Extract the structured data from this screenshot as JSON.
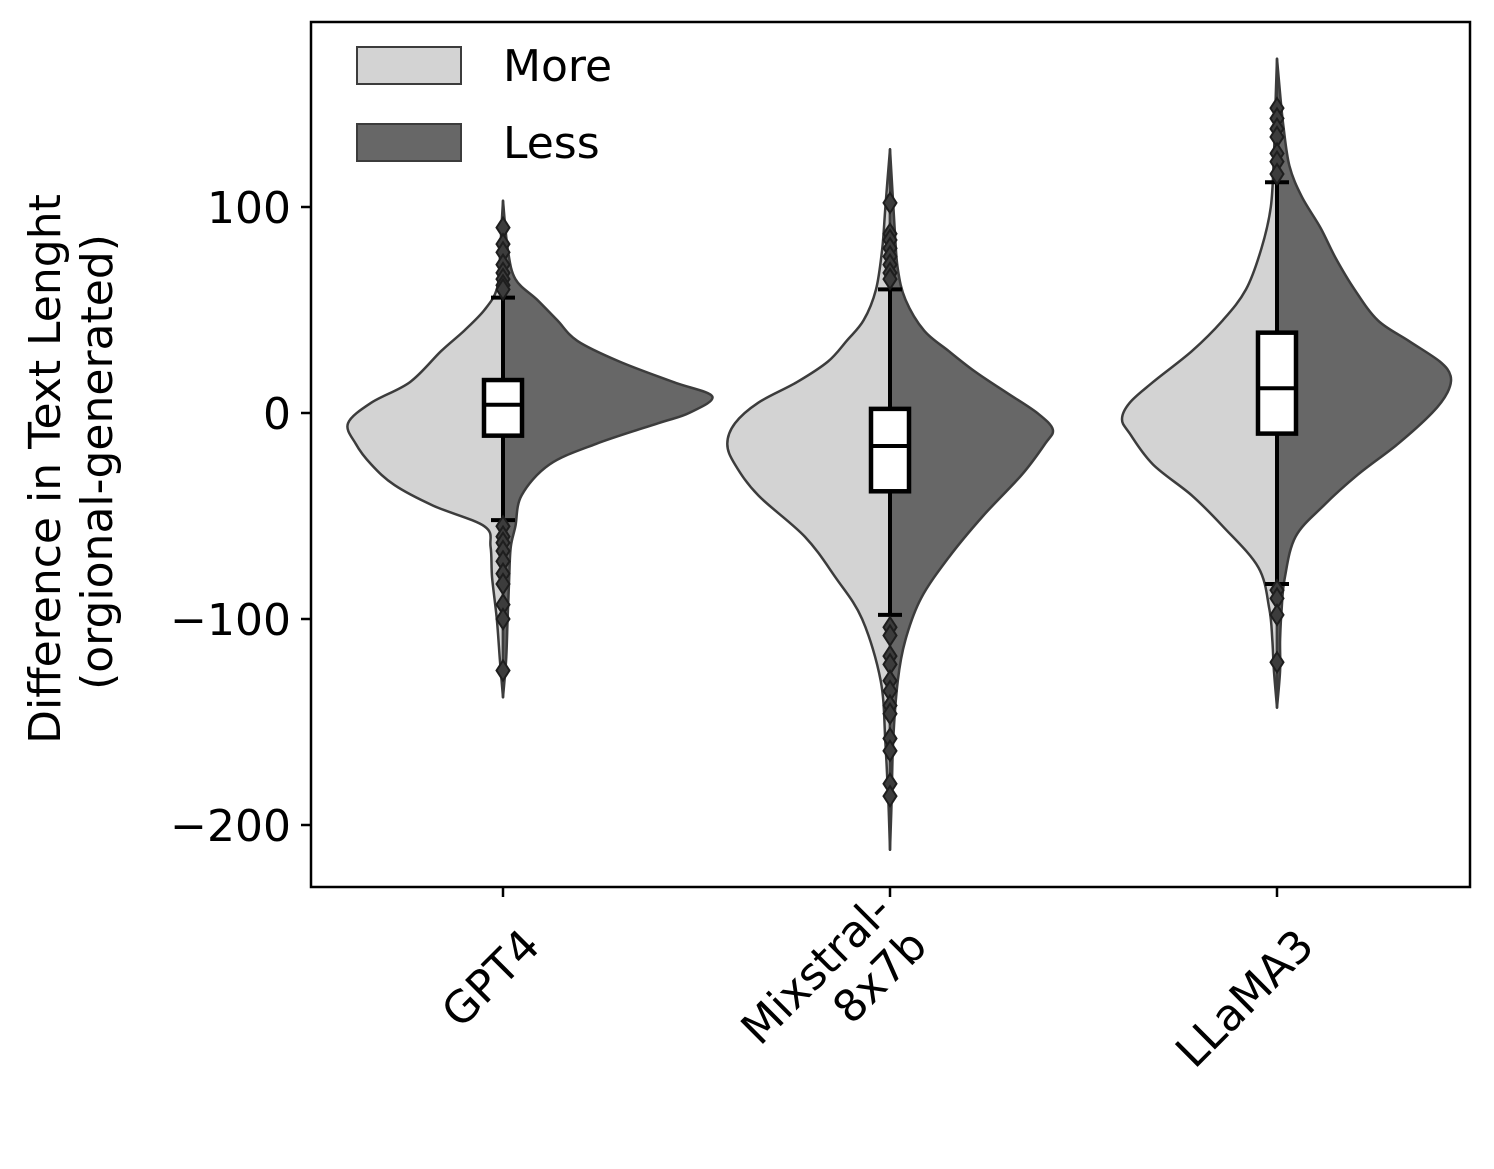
{
  "chart_data": {
    "type": "violin",
    "title": "",
    "xlabel": "",
    "ylabel": [
      "Difference in Text Lenght",
      "(orgional-generated)"
    ],
    "ylim": [
      -230,
      190
    ],
    "yticks": [
      100,
      0,
      -100,
      -200
    ],
    "ytick_labels": [
      "100",
      "0",
      "−100",
      "−200"
    ],
    "categories": [
      "GPT4",
      "Mixstral-\n8x7b",
      "LLaMA3"
    ],
    "category_lines": [
      [
        "GPT4"
      ],
      [
        "Mixstral-",
        "8x7b"
      ],
      [
        "LLaMA3"
      ]
    ],
    "legend": {
      "placement": "top-left",
      "entries": [
        {
          "label": "More",
          "color": "#d3d3d3"
        },
        {
          "label": "Less",
          "color": "#676767"
        }
      ]
    },
    "colors": {
      "more": "#d3d3d3",
      "less": "#676767",
      "outline": "#3c3c3c"
    },
    "violins": [
      {
        "category": "GPT4",
        "more_profile": [
          [
            -138,
            0.0
          ],
          [
            -120,
            0.02
          ],
          [
            -100,
            0.04
          ],
          [
            -80,
            0.07
          ],
          [
            -65,
            0.08
          ],
          [
            -55,
            0.12
          ],
          [
            -45,
            0.45
          ],
          [
            -35,
            0.7
          ],
          [
            -25,
            0.85
          ],
          [
            -15,
            0.95
          ],
          [
            -5,
            1.0
          ],
          [
            5,
            0.85
          ],
          [
            15,
            0.6
          ],
          [
            30,
            0.4
          ],
          [
            40,
            0.25
          ],
          [
            50,
            0.12
          ],
          [
            60,
            0.04
          ],
          [
            75,
            0.02
          ],
          [
            90,
            0.01
          ],
          [
            103,
            0.0
          ]
        ],
        "less_profile": [
          [
            -138,
            0.0
          ],
          [
            -120,
            0.02
          ],
          [
            -100,
            0.03
          ],
          [
            -80,
            0.04
          ],
          [
            -65,
            0.05
          ],
          [
            -55,
            0.08
          ],
          [
            -40,
            0.12
          ],
          [
            -25,
            0.3
          ],
          [
            -15,
            0.6
          ],
          [
            -5,
            1.0
          ],
          [
            0,
            1.2
          ],
          [
            8,
            1.35
          ],
          [
            15,
            1.1
          ],
          [
            25,
            0.75
          ],
          [
            35,
            0.48
          ],
          [
            45,
            0.35
          ],
          [
            55,
            0.22
          ],
          [
            65,
            0.08
          ],
          [
            80,
            0.03
          ],
          [
            103,
            0.0
          ]
        ],
        "box": {
          "q1": -11,
          "median": 4,
          "q3": 16
        },
        "whisker": {
          "low": -52,
          "high": 56
        },
        "outliers": [
          90,
          82,
          78,
          72,
          68,
          65,
          62,
          60,
          -55,
          -60,
          -63,
          -67,
          -72,
          -78,
          -83,
          -93,
          -100,
          -125
        ]
      },
      {
        "category": "Mixstral-8x7b",
        "more_profile": [
          [
            -212,
            0.0
          ],
          [
            -190,
            0.01
          ],
          [
            -160,
            0.03
          ],
          [
            -130,
            0.06
          ],
          [
            -100,
            0.18
          ],
          [
            -80,
            0.35
          ],
          [
            -60,
            0.55
          ],
          [
            -40,
            0.85
          ],
          [
            -25,
            1.0
          ],
          [
            -15,
            1.05
          ],
          [
            -5,
            1.0
          ],
          [
            5,
            0.85
          ],
          [
            15,
            0.6
          ],
          [
            25,
            0.4
          ],
          [
            35,
            0.28
          ],
          [
            45,
            0.17
          ],
          [
            60,
            0.09
          ],
          [
            80,
            0.05
          ],
          [
            100,
            0.03
          ],
          [
            128,
            0.0
          ]
        ],
        "less_profile": [
          [
            -212,
            0.0
          ],
          [
            -190,
            0.01
          ],
          [
            -160,
            0.02
          ],
          [
            -130,
            0.05
          ],
          [
            -110,
            0.1
          ],
          [
            -90,
            0.2
          ],
          [
            -70,
            0.38
          ],
          [
            -50,
            0.6
          ],
          [
            -30,
            0.85
          ],
          [
            -15,
            1.0
          ],
          [
            -8,
            1.05
          ],
          [
            0,
            0.95
          ],
          [
            10,
            0.75
          ],
          [
            20,
            0.55
          ],
          [
            30,
            0.38
          ],
          [
            40,
            0.22
          ],
          [
            55,
            0.1
          ],
          [
            70,
            0.05
          ],
          [
            90,
            0.03
          ],
          [
            128,
            0.0
          ]
        ],
        "box": {
          "q1": -38,
          "median": -16,
          "q3": 2
        },
        "whisker": {
          "low": -98,
          "high": 60
        },
        "outliers": [
          102,
          87,
          84,
          80,
          76,
          72,
          68,
          65,
          -104,
          -108,
          -118,
          -122,
          -130,
          -135,
          -142,
          -146,
          -158,
          -164,
          -180,
          -186
        ]
      },
      {
        "category": "LLaMA3",
        "more_profile": [
          [
            -143,
            0.0
          ],
          [
            -125,
            0.02
          ],
          [
            -110,
            0.03
          ],
          [
            -95,
            0.05
          ],
          [
            -75,
            0.12
          ],
          [
            -55,
            0.35
          ],
          [
            -40,
            0.55
          ],
          [
            -25,
            0.8
          ],
          [
            -10,
            0.95
          ],
          [
            -3,
            1.0
          ],
          [
            5,
            0.95
          ],
          [
            15,
            0.8
          ],
          [
            30,
            0.55
          ],
          [
            45,
            0.35
          ],
          [
            60,
            0.2
          ],
          [
            80,
            0.1
          ],
          [
            100,
            0.04
          ],
          [
            125,
            0.02
          ],
          [
            150,
            0.01
          ],
          [
            172,
            0.0
          ]
        ],
        "less_profile": [
          [
            -143,
            0.0
          ],
          [
            -125,
            0.02
          ],
          [
            -110,
            0.02
          ],
          [
            -95,
            0.03
          ],
          [
            -80,
            0.05
          ],
          [
            -60,
            0.12
          ],
          [
            -45,
            0.3
          ],
          [
            -30,
            0.52
          ],
          [
            -15,
            0.78
          ],
          [
            0,
            1.0
          ],
          [
            10,
            1.1
          ],
          [
            18,
            1.12
          ],
          [
            25,
            1.05
          ],
          [
            35,
            0.85
          ],
          [
            45,
            0.65
          ],
          [
            60,
            0.5
          ],
          [
            75,
            0.38
          ],
          [
            90,
            0.28
          ],
          [
            105,
            0.16
          ],
          [
            120,
            0.08
          ],
          [
            140,
            0.04
          ],
          [
            155,
            0.02
          ],
          [
            172,
            0.0
          ]
        ],
        "box": {
          "q1": -10,
          "median": 12,
          "q3": 39
        },
        "whisker": {
          "low": -83,
          "high": 112
        },
        "outliers": [
          148,
          143,
          138,
          134,
          126,
          122,
          116,
          -86,
          -90,
          -98,
          -121
        ]
      }
    ]
  }
}
